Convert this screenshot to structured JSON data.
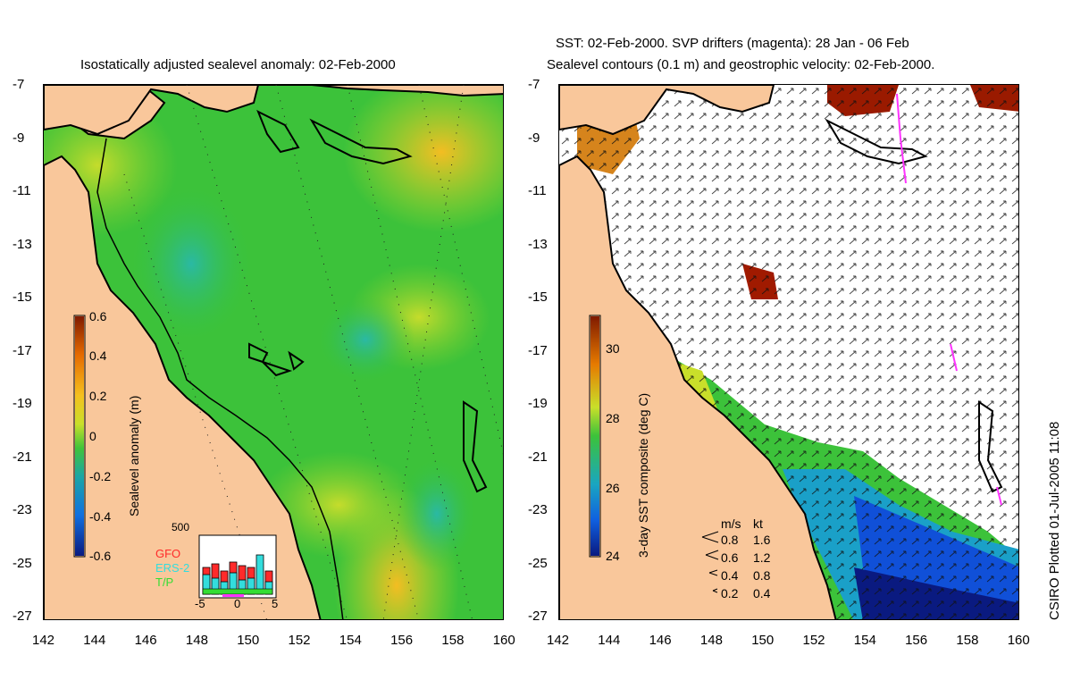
{
  "titles": {
    "left": "Isostatically adjusted sealevel anomaly: 02-Feb-2000",
    "right_line1": "SST: 02-Feb-2000. SVP drifters (magenta): 28 Jan - 06 Feb",
    "right_line2": "Sealevel contours (0.1 m) and geostrophic velocity: 02-Feb-2000."
  },
  "axes": {
    "lat_ticks": [
      "-7",
      "-9",
      "-11",
      "-13",
      "-15",
      "-17",
      "-19",
      "-21",
      "-23",
      "-25",
      "-27"
    ],
    "lon_ticks": [
      "142",
      "144",
      "146",
      "148",
      "150",
      "152",
      "154",
      "156",
      "158",
      "160"
    ],
    "lat_range": [
      -27,
      -7
    ],
    "lon_range": [
      142,
      160
    ]
  },
  "left_colorbar": {
    "label": "Sealevel anomaly (m)",
    "ticks": [
      "0.6",
      "0.4",
      "0.2",
      "0",
      "-0.2",
      "-0.4",
      "-0.6"
    ]
  },
  "right_colorbar": {
    "label": "3-day SST composite (deg C)",
    "ticks": [
      "30",
      "28",
      "26",
      "24"
    ]
  },
  "satellite_inset": {
    "y_max_label": "500",
    "x_ticks": [
      "-5",
      "0",
      "5"
    ],
    "missions": [
      {
        "name": "GFO",
        "color": "#ff2a2a"
      },
      {
        "name": "ERS-2",
        "color": "#33dddd"
      },
      {
        "name": "T/P",
        "color": "#33dd33"
      }
    ]
  },
  "velocity_legend": {
    "header_ms": "m/s",
    "header_kt": "kt",
    "rows": [
      {
        "ms": "0.8",
        "kt": "1.6"
      },
      {
        "ms": "0.6",
        "kt": "1.2"
      },
      {
        "ms": "0.4",
        "kt": "0.8"
      },
      {
        "ms": "0.2",
        "kt": "0.4"
      }
    ]
  },
  "credit": "CSIRO Plotted 01-Jul-2005 11:08",
  "colors": {
    "land": "#f9c79b",
    "sea_green": "#38c238",
    "drifter_magenta": "#ff33ff"
  }
}
